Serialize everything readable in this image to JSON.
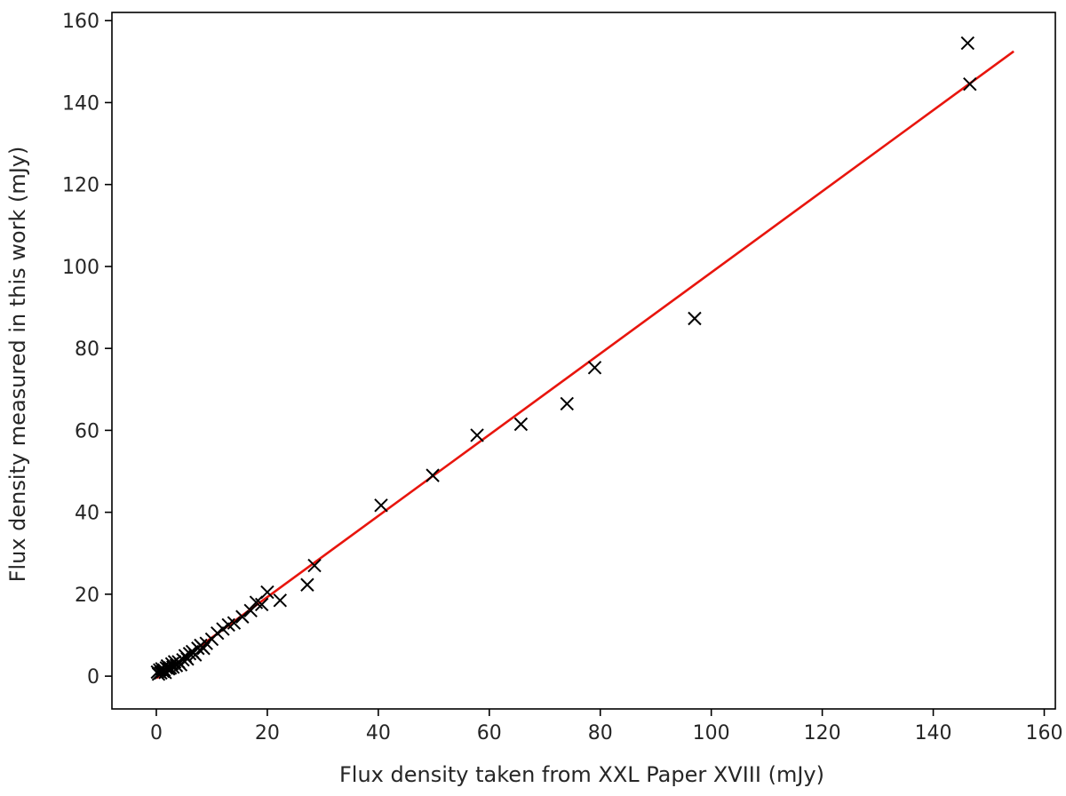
{
  "chart_data": {
    "type": "scatter",
    "title": "",
    "xlabel": "Flux density taken from XXL Paper XVIII (mJy)",
    "ylabel": "Flux density measured in this work (mJy)",
    "xlim": [
      -8,
      162
    ],
    "ylim": [
      -8,
      162
    ],
    "xticks": [
      "0",
      "20",
      "40",
      "60",
      "80",
      "100",
      "120",
      "140",
      "160"
    ],
    "yticks": [
      "0",
      "20",
      "40",
      "60",
      "80",
      "100",
      "120",
      "140",
      "160"
    ],
    "grid": false,
    "legend": "none",
    "marker": "x",
    "colors": {
      "points": "#000000",
      "fit": "#e8150d"
    },
    "series": [
      {
        "x": [
          0.2,
          0.4,
          0.6,
          0.8,
          1.0,
          1.2,
          1.4,
          1.6,
          1.8,
          2.0,
          2.2,
          2.5,
          2.8,
          3.0,
          3.3,
          3.6,
          4.0,
          4.4,
          4.8,
          5.2,
          5.6,
          6.0,
          6.5,
          7.0,
          7.5,
          8.0,
          8.5,
          9.0,
          10.0,
          11.0,
          12.0,
          13.0,
          14.0,
          15.5,
          17.0,
          18.0,
          19.0,
          20.0,
          22.3,
          27.2,
          28.5,
          40.5,
          49.8,
          57.8,
          65.7,
          74.0,
          79.0,
          97.0,
          146.2,
          146.6
        ],
        "y": [
          1.0,
          0.5,
          1.5,
          0.8,
          1.8,
          1.2,
          1.5,
          0.9,
          2.0,
          2.5,
          1.8,
          2.0,
          3.0,
          2.2,
          3.5,
          2.6,
          3.5,
          2.8,
          4.0,
          5.0,
          4.2,
          5.5,
          6.0,
          5.2,
          6.8,
          7.5,
          6.8,
          8.0,
          9.0,
          10.5,
          11.5,
          12.5,
          13.0,
          14.5,
          16.0,
          18.0,
          17.5,
          20.5,
          18.5,
          22.3,
          27.0,
          41.7,
          49.0,
          58.8,
          61.5,
          66.5,
          75.3,
          87.3,
          154.5,
          144.5
        ]
      }
    ],
    "fit_line": {
      "x": [
        0,
        154.5
      ],
      "y": [
        -0.5,
        152.5
      ]
    }
  }
}
